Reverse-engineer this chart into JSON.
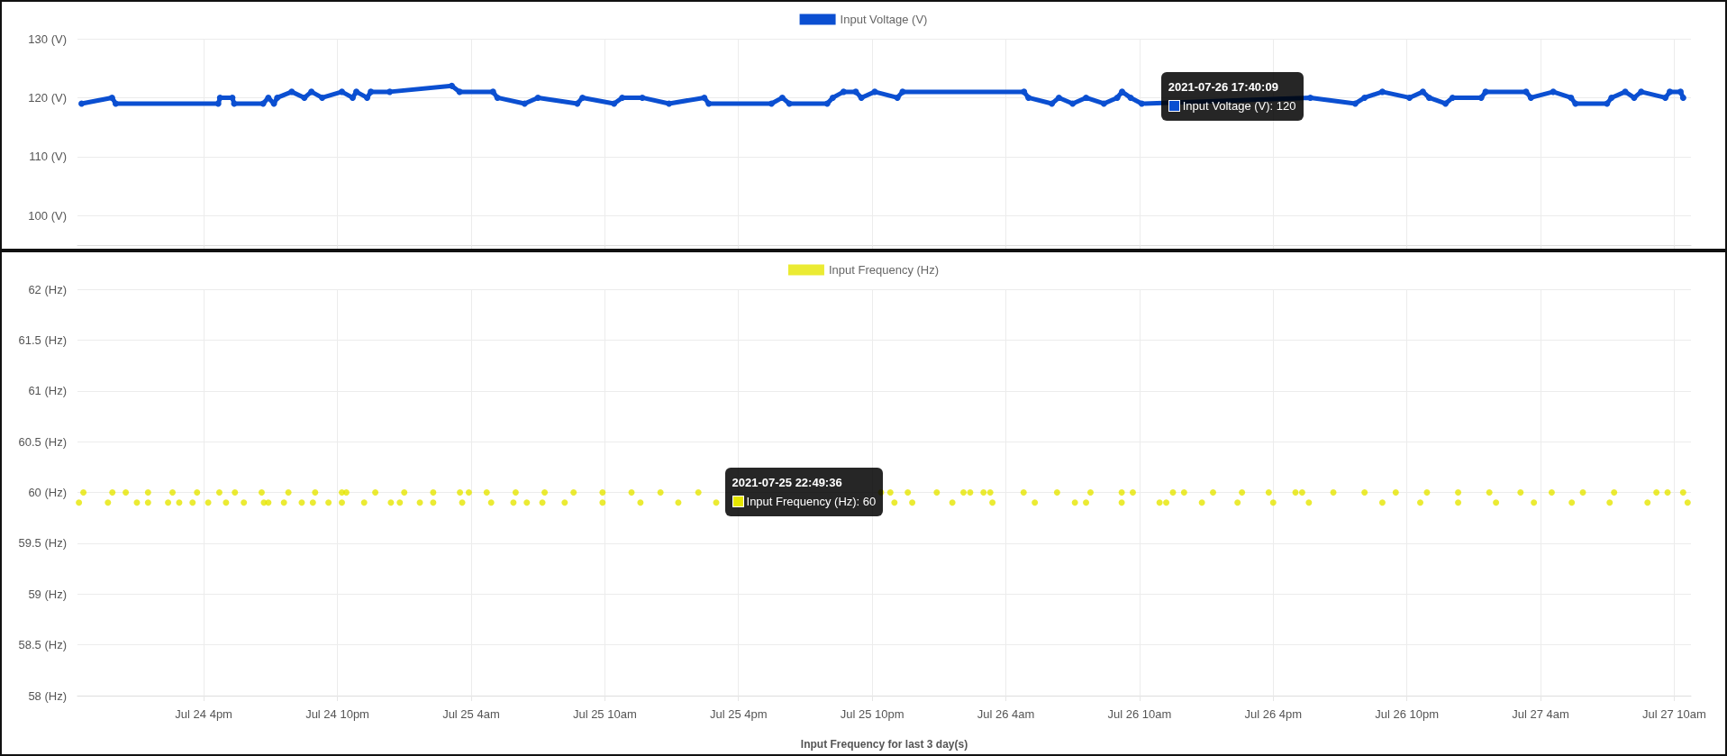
{
  "chart_data": [
    {
      "type": "line",
      "legend": "top",
      "grid": true,
      "marker": "circle",
      "line_style": "solid",
      "tick_labels": "y",
      "xlim": [
        "2021-07-24T10:20",
        "2021-07-27T10:45"
      ],
      "xticks": [
        {
          "value": "2021-07-24T16:00",
          "label": null
        },
        {
          "value": "2021-07-24T22:00",
          "label": null
        },
        {
          "value": "2021-07-25T04:00",
          "label": null
        },
        {
          "value": "2021-07-25T10:00",
          "label": null
        },
        {
          "value": "2021-07-25T16:00",
          "label": null
        },
        {
          "value": "2021-07-25T22:00",
          "label": null
        },
        {
          "value": "2021-07-26T04:00",
          "label": null
        },
        {
          "value": "2021-07-26T10:00",
          "label": null
        },
        {
          "value": "2021-07-26T16:00",
          "label": null
        },
        {
          "value": "2021-07-26T22:00",
          "label": null
        },
        {
          "value": "2021-07-27T04:00",
          "label": null
        },
        {
          "value": "2021-07-27T10:00",
          "label": null
        }
      ],
      "ylim": [
        95,
        130
      ],
      "yticks": [
        {
          "value": 100,
          "label": "100 (V)"
        },
        {
          "value": 110,
          "label": "110 (V)"
        },
        {
          "value": 120,
          "label": "120 (V)"
        },
        {
          "value": 130,
          "label": "130 (V)"
        }
      ],
      "annotations": [
        {
          "text": "2021-07-26 17:40:09\nInput Voltage (V): 120",
          "x": "2021-07-26T17:40",
          "y": 120
        }
      ],
      "series": [
        {
          "name": "Input Voltage (V)",
          "color": "#0b4fd1",
          "x": [
            "2021-07-24T10:31",
            "2021-07-24T11:53",
            "2021-07-24T12:03",
            "2021-07-24T16:39",
            "2021-07-24T16:44",
            "2021-07-24T17:17",
            "2021-07-24T17:22",
            "2021-07-24T18:40",
            "2021-07-24T18:54",
            "2021-07-24T19:09",
            "2021-07-24T19:18",
            "2021-07-24T19:57",
            "2021-07-24T20:31",
            "2021-07-24T20:50",
            "2021-07-24T21:19",
            "2021-07-24T22:12",
            "2021-07-24T22:41",
            "2021-07-24T22:51",
            "2021-07-24T23:20",
            "2021-07-24T23:30",
            "2021-07-25T00:21",
            "2021-07-25T03:08",
            "2021-07-25T03:29",
            "2021-07-25T04:59",
            "2021-07-25T05:11",
            "2021-07-25T06:24",
            "2021-07-25T07:00",
            "2021-07-25T08:46",
            "2021-07-25T09:00",
            "2021-07-25T10:25",
            "2021-07-25T10:47",
            "2021-07-25T11:41",
            "2021-07-25T12:53",
            "2021-07-25T14:28",
            "2021-07-25T14:40",
            "2021-07-25T17:29",
            "2021-07-25T17:58",
            "2021-07-25T18:17",
            "2021-07-25T19:59",
            "2021-07-25T20:14",
            "2021-07-25T20:43",
            "2021-07-25T21:16",
            "2021-07-25T21:31",
            "2021-07-25T22:07",
            "2021-07-25T23:08",
            "2021-07-25T23:22",
            "2021-07-26T04:49",
            "2021-07-26T05:01",
            "2021-07-26T06:04",
            "2021-07-26T06:23",
            "2021-07-26T07:00",
            "2021-07-26T07:36",
            "2021-07-26T08:24",
            "2021-07-26T09:00",
            "2021-07-26T09:13",
            "2021-07-26T09:36",
            "2021-07-26T10:06",
            "2021-07-26T17:40",
            "2021-07-26T19:41",
            "2021-07-26T20:06",
            "2021-07-26T20:54",
            "2021-07-26T22:07",
            "2021-07-26T22:43",
            "2021-07-26T23:00",
            "2021-07-26T23:44",
            "2021-07-27T00:03",
            "2021-07-27T01:20",
            "2021-07-27T01:32",
            "2021-07-27T03:21",
            "2021-07-27T03:34",
            "2021-07-27T04:34",
            "2021-07-27T05:22",
            "2021-07-27T05:34",
            "2021-07-27T06:59",
            "2021-07-27T07:11",
            "2021-07-27T07:48",
            "2021-07-27T08:12",
            "2021-07-27T08:31",
            "2021-07-27T09:36",
            "2021-07-27T09:48",
            "2021-07-27T10:17",
            "2021-07-27T10:24"
          ],
          "values": [
            119,
            120,
            119,
            119,
            120,
            120,
            119,
            119,
            120,
            119,
            120,
            121,
            120,
            121,
            120,
            121,
            120,
            121,
            120,
            121,
            121,
            122,
            121,
            121,
            120,
            119,
            120,
            119,
            120,
            119,
            120,
            120,
            119,
            120,
            119,
            119,
            120,
            119,
            119,
            120,
            121,
            121,
            120,
            121,
            120,
            121,
            121,
            120,
            119,
            120,
            119,
            120,
            119,
            120,
            121,
            120,
            119,
            120,
            119,
            120,
            121,
            120,
            121,
            120,
            119,
            120,
            120,
            121,
            121,
            120,
            121,
            120,
            119,
            119,
            120,
            121,
            120,
            121,
            120,
            121,
            121,
            120
          ]
        }
      ]
    },
    {
      "type": "scatter",
      "legend": "top",
      "grid": true,
      "marker": "circle",
      "xlabel": "Input Frequency for last 3 day(s)",
      "xlim": [
        "2021-07-24T10:20",
        "2021-07-27T10:45"
      ],
      "xticks": [
        {
          "value": "2021-07-24T16:00",
          "label": "Jul 24 4pm"
        },
        {
          "value": "2021-07-24T22:00",
          "label": "Jul 24 10pm"
        },
        {
          "value": "2021-07-25T04:00",
          "label": "Jul 25 4am"
        },
        {
          "value": "2021-07-25T10:00",
          "label": "Jul 25 10am"
        },
        {
          "value": "2021-07-25T16:00",
          "label": "Jul 25 4pm"
        },
        {
          "value": "2021-07-25T22:00",
          "label": "Jul 25 10pm"
        },
        {
          "value": "2021-07-26T04:00",
          "label": "Jul 26 4am"
        },
        {
          "value": "2021-07-26T10:00",
          "label": "Jul 26 10am"
        },
        {
          "value": "2021-07-26T16:00",
          "label": "Jul 26 4pm"
        },
        {
          "value": "2021-07-26T22:00",
          "label": "Jul 26 10pm"
        },
        {
          "value": "2021-07-27T04:00",
          "label": "Jul 27 4am"
        },
        {
          "value": "2021-07-27T10:00",
          "label": "Jul 27 10am"
        }
      ],
      "ylim": [
        58,
        62
      ],
      "yticks": [
        {
          "value": 58,
          "label": "58 (Hz)"
        },
        {
          "value": 58.5,
          "label": "58.5 (Hz)"
        },
        {
          "value": 59,
          "label": "59 (Hz)"
        },
        {
          "value": 59.5,
          "label": "59.5 (Hz)"
        },
        {
          "value": 60,
          "label": "60 (Hz)"
        },
        {
          "value": 60.5,
          "label": "60.5 (Hz)"
        },
        {
          "value": 61,
          "label": "61 (Hz)"
        },
        {
          "value": 61.5,
          "label": "61.5 (Hz)"
        },
        {
          "value": 62,
          "label": "62 (Hz)"
        }
      ],
      "annotations": [
        {
          "text": "2021-07-25 22:49:36\nInput Frequency (Hz): 60",
          "x": "2021-07-25T22:49",
          "y": 60
        }
      ],
      "series": [
        {
          "name": "Input Frequency (Hz)",
          "color": "#e6e600",
          "x": [
            "2021-07-24T10:36",
            "2021-07-24T11:54",
            "2021-07-24T12:30",
            "2021-07-24T13:30",
            "2021-07-24T14:36",
            "2021-07-24T15:42",
            "2021-07-24T16:42",
            "2021-07-24T17:24",
            "2021-07-24T18:36",
            "2021-07-24T19:48",
            "2021-07-24T21:00",
            "2021-07-24T22:12",
            "2021-07-24T22:24",
            "2021-07-24T23:42",
            "2021-07-25T01:00",
            "2021-07-25T02:18",
            "2021-07-25T03:30",
            "2021-07-25T03:54",
            "2021-07-25T04:42",
            "2021-07-25T06:00",
            "2021-07-25T07:18",
            "2021-07-25T08:36",
            "2021-07-25T09:54",
            "2021-07-25T11:12",
            "2021-07-25T12:30",
            "2021-07-25T14:12",
            "2021-07-25T22:24",
            "2021-07-25T22:49",
            "2021-07-25T23:36",
            "2021-07-26T00:54",
            "2021-07-26T02:06",
            "2021-07-26T02:24",
            "2021-07-26T03:00",
            "2021-07-26T03:18",
            "2021-07-26T04:48",
            "2021-07-26T06:18",
            "2021-07-26T07:48",
            "2021-07-26T09:12",
            "2021-07-26T09:42",
            "2021-07-26T11:30",
            "2021-07-26T12:00",
            "2021-07-26T13:18",
            "2021-07-26T14:36",
            "2021-07-26T15:48",
            "2021-07-26T17:00",
            "2021-07-26T17:18",
            "2021-07-26T18:42",
            "2021-07-26T20:06",
            "2021-07-26T21:30",
            "2021-07-26T22:54",
            "2021-07-27T00:18",
            "2021-07-27T01:42",
            "2021-07-27T03:06",
            "2021-07-27T04:30",
            "2021-07-27T05:54",
            "2021-07-27T07:18",
            "2021-07-27T09:12",
            "2021-07-27T09:42",
            "2021-07-27T10:24",
            "2021-07-24T10:24",
            "2021-07-24T11:42",
            "2021-07-24T13:00",
            "2021-07-24T13:30",
            "2021-07-24T14:24",
            "2021-07-24T14:54",
            "2021-07-24T15:30",
            "2021-07-24T16:12",
            "2021-07-24T17:00",
            "2021-07-24T17:48",
            "2021-07-24T18:42",
            "2021-07-24T18:54",
            "2021-07-24T19:36",
            "2021-07-24T20:24",
            "2021-07-24T20:54",
            "2021-07-24T21:36",
            "2021-07-24T22:12",
            "2021-07-24T23:12",
            "2021-07-25T00:24",
            "2021-07-25T00:48",
            "2021-07-25T01:42",
            "2021-07-25T02:18",
            "2021-07-25T03:36",
            "2021-07-25T04:54",
            "2021-07-25T05:54",
            "2021-07-25T06:30",
            "2021-07-25T07:12",
            "2021-07-25T08:12",
            "2021-07-25T09:54",
            "2021-07-25T11:36",
            "2021-07-25T13:18",
            "2021-07-25T15:00",
            "2021-07-25T23:00",
            "2021-07-25T23:48",
            "2021-07-26T01:36",
            "2021-07-26T03:24",
            "2021-07-26T05:18",
            "2021-07-26T07:06",
            "2021-07-26T07:36",
            "2021-07-26T09:12",
            "2021-07-26T10:54",
            "2021-07-26T11:12",
            "2021-07-26T12:48",
            "2021-07-26T14:24",
            "2021-07-26T16:00",
            "2021-07-26T17:36",
            "2021-07-26T20:54",
            "2021-07-26T22:36",
            "2021-07-27T00:18",
            "2021-07-27T02:00",
            "2021-07-27T03:42",
            "2021-07-27T05:24",
            "2021-07-27T07:06",
            "2021-07-27T08:48",
            "2021-07-27T10:36"
          ],
          "values": [
            60,
            60,
            60,
            60,
            60,
            60,
            60,
            60,
            60,
            60,
            60,
            60,
            60,
            60,
            60,
            60,
            60,
            60,
            60,
            60,
            60,
            60,
            60,
            60,
            60,
            60,
            60,
            60,
            60,
            60,
            60,
            60,
            60,
            60,
            60,
            60,
            60,
            60,
            60,
            60,
            60,
            60,
            60,
            60,
            60,
            60,
            60,
            60,
            60,
            60,
            60,
            60,
            60,
            60,
            60,
            60,
            60,
            60,
            60,
            59.9,
            59.9,
            59.9,
            59.9,
            59.9,
            59.9,
            59.9,
            59.9,
            59.9,
            59.9,
            59.9,
            59.9,
            59.9,
            59.9,
            59.9,
            59.9,
            59.9,
            59.9,
            59.9,
            59.9,
            59.9,
            59.9,
            59.9,
            59.9,
            59.9,
            59.9,
            59.9,
            59.9,
            59.9,
            59.9,
            59.9,
            59.9,
            59.9,
            59.9,
            59.9,
            59.9,
            59.9,
            59.9,
            59.9,
            59.9,
            59.9,
            59.9,
            59.9,
            59.9,
            59.9,
            59.9,
            59.9,
            59.9,
            59.9,
            59.9,
            59.9,
            59.9,
            59.9,
            59.9,
            59.9
          ]
        }
      ]
    }
  ]
}
